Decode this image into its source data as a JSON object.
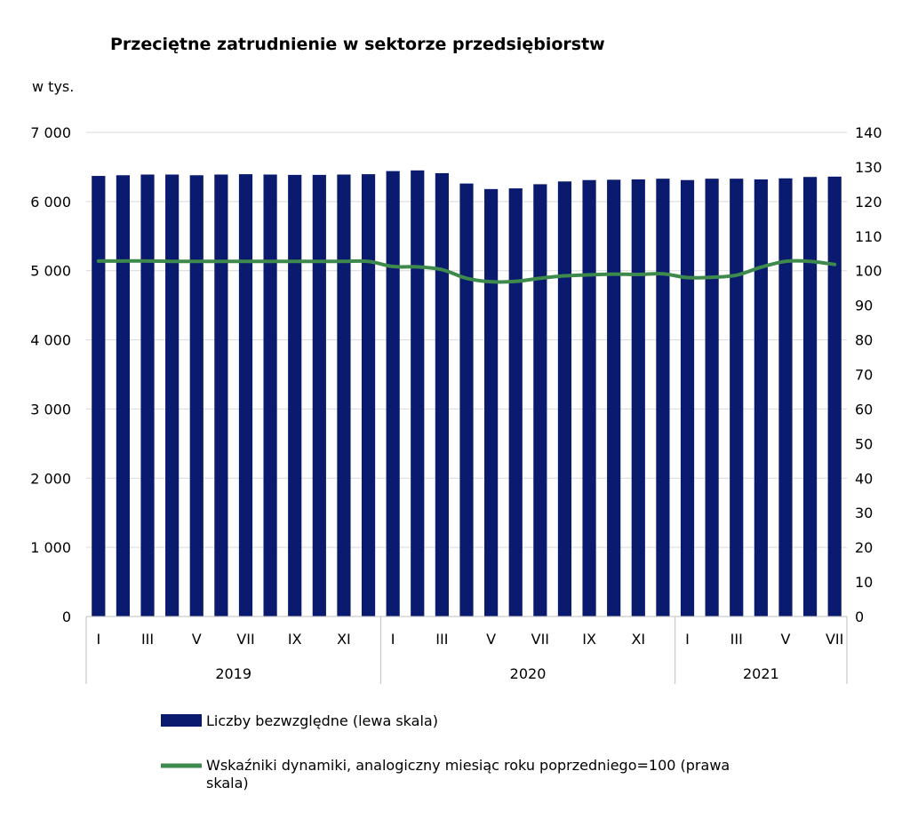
{
  "chart_data": {
    "type": "bar+line",
    "title": "Przeciętne zatrudnienie w sektorze przedsiębiorstw",
    "y_left_unit": "w tys.",
    "y_left_range": [
      0,
      7000
    ],
    "y_left_ticks": [
      "0",
      "1 000",
      "2 000",
      "3 000",
      "4 000",
      "5 000",
      "6 000",
      "7 000"
    ],
    "y_right_range": [
      0,
      140
    ],
    "y_right_ticks": [
      "0",
      "10",
      "20",
      "30",
      "40",
      "50",
      "60",
      "70",
      "80",
      "90",
      "100",
      "110",
      "120",
      "130",
      "140"
    ],
    "grid": "horizontal",
    "legend_placement": "bottom",
    "categories": [
      "I",
      "II",
      "III",
      "IV",
      "V",
      "VI",
      "VII",
      "VIII",
      "IX",
      "X",
      "XI",
      "XII",
      "I",
      "II",
      "III",
      "IV",
      "V",
      "VI",
      "VII",
      "VIII",
      "IX",
      "X",
      "XI",
      "XII",
      "I",
      "II",
      "III",
      "IV",
      "V",
      "VI",
      "VII"
    ],
    "category_labels_shown": [
      "I",
      "",
      "III",
      "",
      "V",
      "",
      "VII",
      "",
      "IX",
      "",
      "XI",
      "",
      "I",
      "",
      "III",
      "",
      "V",
      "",
      "VII",
      "",
      "IX",
      "",
      "XI",
      "",
      "I",
      "",
      "III",
      "",
      "V",
      "",
      "VII"
    ],
    "year_groups": [
      {
        "label": "2019",
        "count": 12
      },
      {
        "label": "2020",
        "count": 12
      },
      {
        "label": "2021",
        "count": 7
      }
    ],
    "series": [
      {
        "name": "Liczby bezwzględne (lewa skala)",
        "type": "bar",
        "axis": "left",
        "color": "#0a1a6e",
        "values": [
          6370,
          6380,
          6390,
          6390,
          6380,
          6390,
          6395,
          6390,
          6385,
          6385,
          6390,
          6395,
          6440,
          6450,
          6410,
          6260,
          6180,
          6190,
          6250,
          6290,
          6310,
          6315,
          6320,
          6330,
          6310,
          6330,
          6330,
          6320,
          6335,
          6355,
          6360
        ]
      },
      {
        "name": "Wskaźniki dynamiki, analogiczny miesiąc roku poprzedniego=100 (prawa skala)",
        "type": "line",
        "axis": "right",
        "color": "#3e8a4c",
        "values": [
          102.8,
          102.8,
          102.8,
          102.7,
          102.7,
          102.7,
          102.7,
          102.7,
          102.7,
          102.7,
          102.7,
          102.7,
          101.2,
          101.1,
          100.3,
          97.8,
          96.8,
          96.9,
          97.8,
          98.5,
          98.8,
          99.0,
          98.9,
          99.1,
          98.0,
          98.1,
          98.7,
          101.0,
          102.7,
          102.7,
          101.8
        ]
      }
    ]
  }
}
